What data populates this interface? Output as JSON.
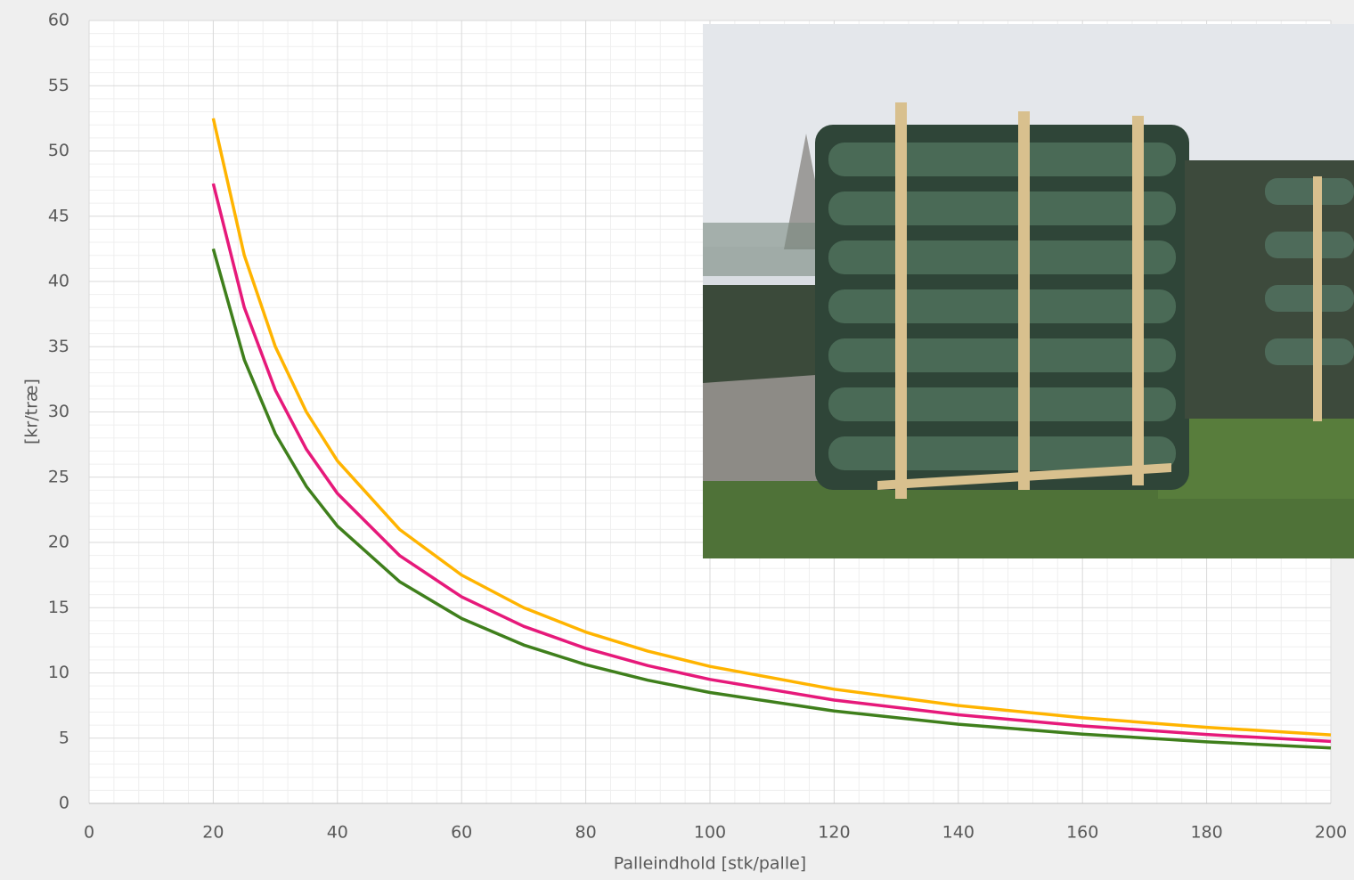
{
  "chart_data": {
    "type": "line",
    "x_label": "Palleindhold [stk/palle]",
    "y_label": "[kr/træ]",
    "x": [
      20,
      25,
      30,
      35,
      40,
      50,
      60,
      70,
      80,
      90,
      100,
      120,
      140,
      160,
      180,
      200
    ],
    "series": [
      {
        "color": "#ffb400",
        "values": [
          52.5,
          42,
          35,
          30,
          26.25,
          21,
          17.5,
          15,
          13.13,
          11.67,
          10.5,
          8.75,
          7.5,
          6.56,
          5.83,
          5.25
        ]
      },
      {
        "color": "#e6197a",
        "values": [
          47.5,
          38,
          31.67,
          27.14,
          23.75,
          19,
          15.83,
          13.57,
          11.88,
          10.56,
          9.5,
          7.92,
          6.79,
          5.94,
          5.28,
          4.75
        ]
      },
      {
        "color": "#3f7f1c",
        "values": [
          42.5,
          34,
          28.33,
          24.29,
          21.25,
          17,
          14.17,
          12.14,
          10.63,
          9.44,
          8.5,
          7.08,
          6.07,
          5.31,
          4.72,
          4.25
        ]
      }
    ],
    "xlim": [
      0,
      200
    ],
    "xticks": [
      0,
      20,
      40,
      60,
      80,
      100,
      120,
      140,
      160,
      180,
      200
    ],
    "ylim": [
      0,
      60
    ],
    "yticks": [
      0,
      5,
      10,
      15,
      20,
      25,
      30,
      35,
      40,
      45,
      50,
      55,
      60
    ],
    "grid": true,
    "minor_grid": true
  }
}
